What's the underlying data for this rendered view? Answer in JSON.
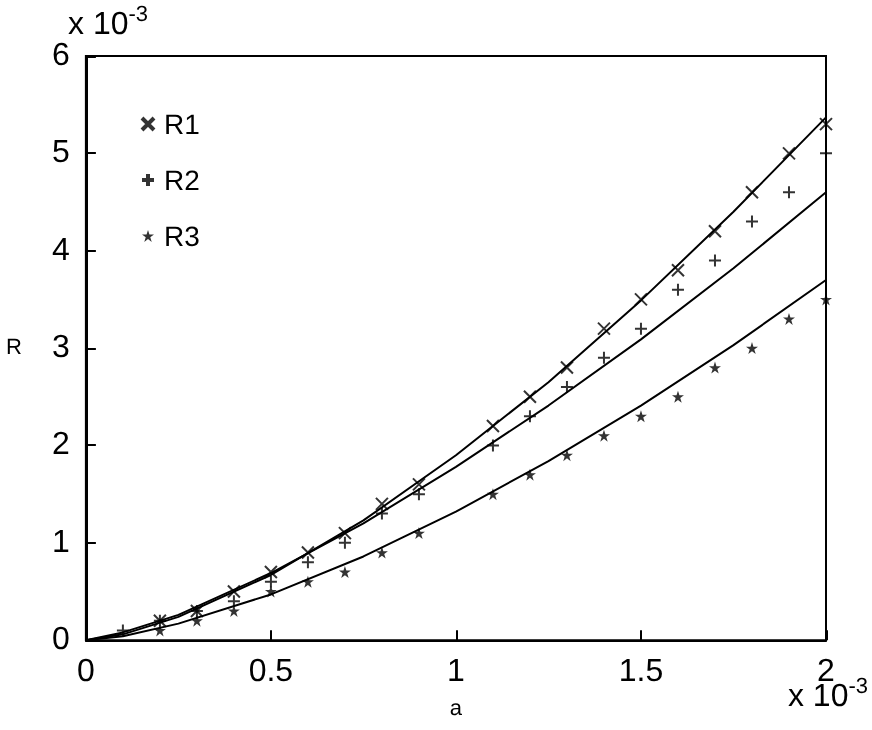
{
  "chart_data": {
    "type": "scatter",
    "xlabel": "a",
    "ylabel": "R",
    "annotations": [
      "x 10$^{-3}$",
      "x 10$^{-3}$"
    ],
    "xlim": [
      0,
      2
    ],
    "ylim": [
      0,
      6
    ],
    "xticks": [
      0,
      0.5,
      1,
      1.5,
      2
    ],
    "yticks": [
      0,
      1,
      2,
      3,
      4,
      5,
      6
    ],
    "grid": false,
    "legend": "top left",
    "series": [
      {
        "name": "R1",
        "color": "#000000",
        "marker": "cross",
        "x": [
          0.2,
          0.3,
          0.4,
          0.5,
          0.6,
          0.7,
          0.8,
          0.9,
          1.1,
          1.2,
          1.3,
          1.4,
          1.5,
          1.6,
          1.7,
          1.8,
          1.9,
          2.0
        ],
        "values": [
          0.2,
          0.3,
          0.5,
          0.7,
          0.9,
          1.1,
          1.4,
          1.6,
          2.2,
          2.5,
          2.8,
          3.2,
          3.5,
          3.8,
          4.2,
          4.6,
          5.0,
          5.3
        ]
      },
      {
        "name": "R2",
        "color": "#000000",
        "marker": "plus",
        "x": [
          0.1,
          0.2,
          0.3,
          0.4,
          0.5,
          0.6,
          0.7,
          0.8,
          0.9,
          1.1,
          1.2,
          1.3,
          1.4,
          1.5,
          1.6,
          1.7,
          1.8,
          1.9,
          2.0
        ],
        "values": [
          0.1,
          0.2,
          0.3,
          0.4,
          0.6,
          0.8,
          1.0,
          1.3,
          1.5,
          2.0,
          2.3,
          2.6,
          2.9,
          3.2,
          3.6,
          3.9,
          4.3,
          4.6,
          5.0
        ]
      },
      {
        "name": "R3",
        "color": "#000000",
        "marker": "star",
        "x": [
          0.2,
          0.3,
          0.4,
          0.5,
          0.6,
          0.7,
          0.8,
          0.9,
          1.1,
          1.2,
          1.3,
          1.4,
          1.5,
          1.6,
          1.7,
          1.8,
          1.9,
          2.0
        ],
        "values": [
          0.1,
          0.2,
          0.3,
          0.5,
          0.6,
          0.7,
          0.9,
          1.1,
          1.5,
          1.7,
          1.9,
          2.1,
          2.3,
          2.5,
          2.8,
          3.0,
          3.3,
          3.5
        ]
      },
      {
        "type": "line",
        "color": "#000000",
        "marker": "none",
        "x": [
          0,
          0.1,
          0.25,
          0.5,
          0.75,
          1,
          1.25,
          1.5,
          1.75,
          2
        ],
        "values": [
          0,
          0.06,
          0.24,
          0.67,
          1.23,
          1.9,
          2.65,
          3.49,
          4.4,
          5.37
        ]
      },
      {
        "type": "line",
        "color": "#000000",
        "marker": "none",
        "x": [
          0,
          0.1,
          0.25,
          0.5,
          0.75,
          1,
          1.25,
          1.5,
          1.75,
          2
        ],
        "values": [
          0,
          0.08,
          0.26,
          0.69,
          1.2,
          1.78,
          2.41,
          3.09,
          3.82,
          4.6
        ]
      },
      {
        "type": "line",
        "color": "#000000",
        "marker": "none",
        "x": [
          0,
          0.1,
          0.25,
          0.5,
          0.75,
          1,
          1.25,
          1.5,
          1.75,
          2
        ],
        "values": [
          0,
          0.04,
          0.17,
          0.47,
          0.86,
          1.32,
          1.84,
          2.41,
          3.03,
          3.7
        ]
      }
    ]
  }
}
